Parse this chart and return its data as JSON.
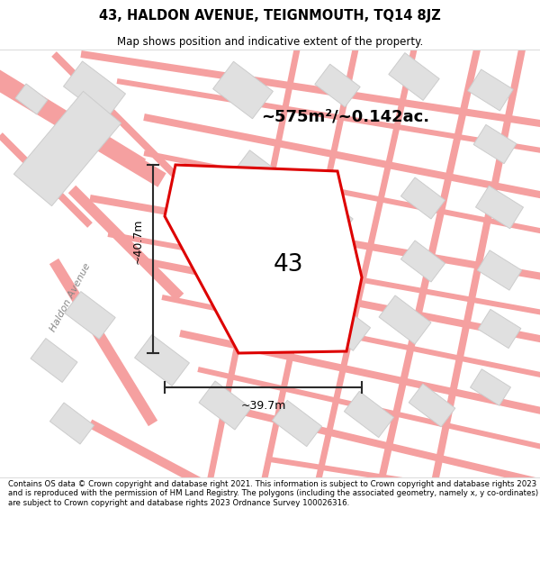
{
  "title": "43, HALDON AVENUE, TEIGNMOUTH, TQ14 8JZ",
  "subtitle": "Map shows position and indicative extent of the property.",
  "footer": "Contains OS data © Crown copyright and database right 2021. This information is subject to Crown copyright and database rights 2023 and is reproduced with the permission of HM Land Registry. The polygons (including the associated geometry, namely x, y co-ordinates) are subject to Crown copyright and database rights 2023 Ordnance Survey 100026316.",
  "area_label": "~575m²/~0.142ac.",
  "number_label": "43",
  "width_label": "~39.7m",
  "height_label": "~40.7m",
  "street_label": "Haldon Avenue",
  "map_bg": "#fafafa",
  "title_area_color": "#ffffff",
  "footer_area_color": "#ffffff",
  "property_color": "#dd0000",
  "road_color": "#f5a0a0",
  "road_outline_color": "#e8c0c0",
  "building_color": "#e0e0e0",
  "building_outline": "#cccccc",
  "dim_color": "#2a2a2a",
  "figsize": [
    6.0,
    6.25
  ],
  "dpi": 100
}
